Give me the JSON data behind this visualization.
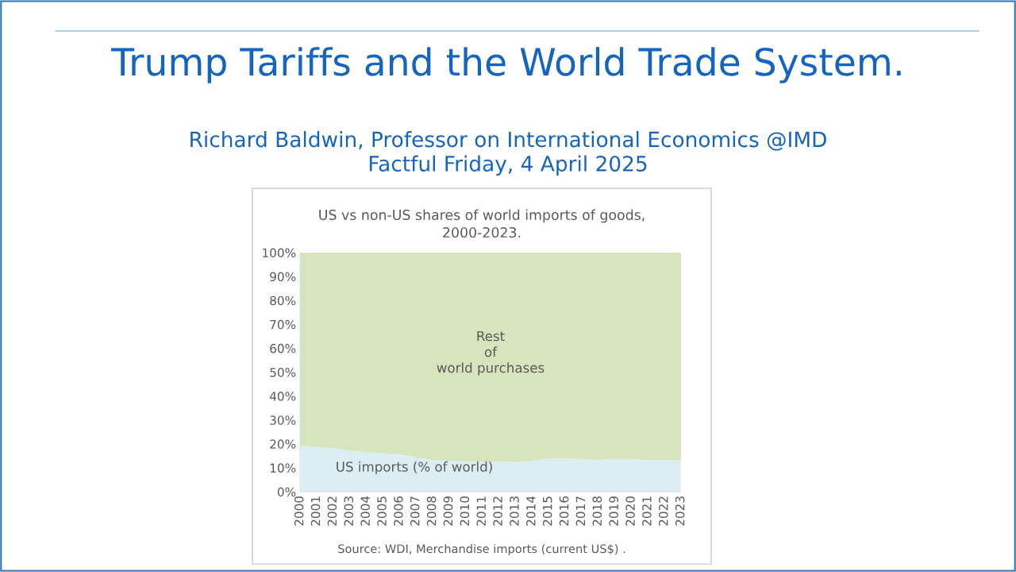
{
  "chart_data": {
    "type": "area",
    "stacked": true,
    "legend": false,
    "grid": false,
    "title": "Trump Tariffs and the World Trade System.",
    "subtitle": "Richard Baldwin, Professor on International Economics @IMD\nFactful Friday, 4 April 2025",
    "annotations": [
      "US vs non-US shares of world imports of goods,\n2000-2023.",
      "Source: WDI, Merchandise imports (current US$) ."
    ],
    "categories": [
      "2000",
      "2001",
      "2002",
      "2003",
      "2004",
      "2005",
      "2006",
      "2007",
      "2008",
      "2009",
      "2010",
      "2011",
      "2012",
      "2013",
      "2014",
      "2015",
      "2016",
      "2017",
      "2018",
      "2019",
      "2020",
      "2021",
      "2022",
      "2023"
    ],
    "ylim": [
      0,
      100
    ],
    "yticks": [
      {
        "value": 0,
        "label": "0%"
      },
      {
        "value": 10,
        "label": "10%"
      },
      {
        "value": 20,
        "label": "20%"
      },
      {
        "value": 30,
        "label": "30%"
      },
      {
        "value": 40,
        "label": "40%"
      },
      {
        "value": 50,
        "label": "50%"
      },
      {
        "value": 60,
        "label": "60%"
      },
      {
        "value": 70,
        "label": "70%"
      },
      {
        "value": 80,
        "label": "80%"
      },
      {
        "value": 90,
        "label": "90%"
      },
      {
        "value": 100,
        "label": "100%"
      }
    ],
    "series": [
      {
        "name": "US imports (% of world)",
        "color": "#daeef3",
        "values": [
          19.3,
          18.7,
          18.3,
          17.3,
          16.5,
          16.1,
          15.6,
          14.4,
          13.3,
          12.9,
          12.7,
          12.4,
          12.7,
          12.4,
          12.9,
          13.9,
          13.9,
          13.6,
          13.3,
          13.6,
          13.6,
          13.3,
          13.3,
          13.3
        ]
      },
      {
        "name": "Rest of world purchases",
        "color": "#d7e4bd",
        "values": [
          80.7,
          81.3,
          81.7,
          82.7,
          83.5,
          83.9,
          84.4,
          85.6,
          86.7,
          87.1,
          87.3,
          87.6,
          87.3,
          87.6,
          87.1,
          86.1,
          86.1,
          86.4,
          86.7,
          86.4,
          86.4,
          86.7,
          86.7,
          86.7
        ]
      }
    ]
  }
}
